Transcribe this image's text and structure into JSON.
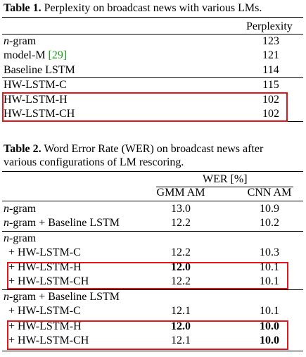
{
  "table1": {
    "label": "Table 1.",
    "caption": "Perplexity on broadcast news with various LMs.",
    "header": "Perplexity",
    "rows": [
      [
        "n-gram",
        "123"
      ],
      [
        "model-M",
        "121"
      ],
      [
        "Baseline LSTM",
        "114"
      ],
      [
        "HW-LSTM-C",
        "115"
      ],
      [
        "HW-LSTM-H",
        "102"
      ],
      [
        "HW-LSTM-CH",
        "102"
      ]
    ],
    "ref": "[29]"
  },
  "table2": {
    "label": "Table 2.",
    "caption_line1": "Word Error Rate (WER) on broadcast news after",
    "caption_line2": "various configurations of LM rescoring.",
    "header": "WER [%]",
    "columns": [
      "GMM AM",
      "CNN AM"
    ],
    "rows": [
      [
        "n-gram",
        "13.0",
        "10.9"
      ],
      [
        "n-gram + Baseline LSTM",
        "12.2",
        "10.2"
      ],
      [
        "n-gram"
      ],
      [
        "+ HW-LSTM-C",
        "12.2",
        "10.3"
      ],
      [
        "+ HW-LSTM-H",
        "12.0",
        "10.1"
      ],
      [
        "+ HW-LSTM-CH",
        "12.2",
        "10.1"
      ],
      [
        "n-gram + Baseline LSTM"
      ],
      [
        "+ HW-LSTM-C",
        "12.1",
        "10.1"
      ],
      [
        "+ HW-LSTM-H",
        "12.0",
        "10.0"
      ],
      [
        "+ HW-LSTM-CH",
        "12.1",
        "10.0"
      ]
    ]
  }
}
